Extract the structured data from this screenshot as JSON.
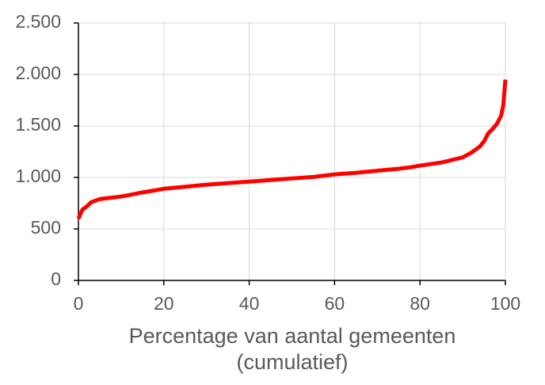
{
  "chart_data": {
    "type": "line",
    "x_label": "Percentage van aantal gemeenten (cumulatief)",
    "x": [
      0,
      0.5,
      1,
      2,
      3,
      5,
      8,
      10,
      12,
      15,
      18,
      20,
      25,
      30,
      35,
      40,
      45,
      50,
      55,
      60,
      65,
      70,
      75,
      78,
      80,
      85,
      88,
      90,
      92,
      94,
      95,
      96,
      97,
      98,
      99,
      99.5,
      100
    ],
    "series": [
      {
        "color": "#ff0000",
        "values": [
          600,
          650,
          690,
          720,
          760,
          790,
          805,
          815,
          830,
          855,
          875,
          890,
          910,
          930,
          945,
          960,
          975,
          990,
          1005,
          1030,
          1045,
          1065,
          1085,
          1100,
          1115,
          1145,
          1175,
          1195,
          1240,
          1300,
          1350,
          1430,
          1470,
          1520,
          1600,
          1700,
          1950
        ]
      }
    ],
    "xlim": [
      0,
      100
    ],
    "xticks": [
      0,
      20,
      40,
      60,
      80,
      100
    ],
    "ylim": [
      0,
      2500
    ],
    "yticks": [
      0,
      500,
      {
        "value": 1000,
        "label": "1.000"
      },
      {
        "value": 1500,
        "label": "1.500"
      },
      {
        "value": 2000,
        "label": "2.000"
      },
      {
        "value": 2500,
        "label": "2.500"
      }
    ],
    "grid": true
  }
}
